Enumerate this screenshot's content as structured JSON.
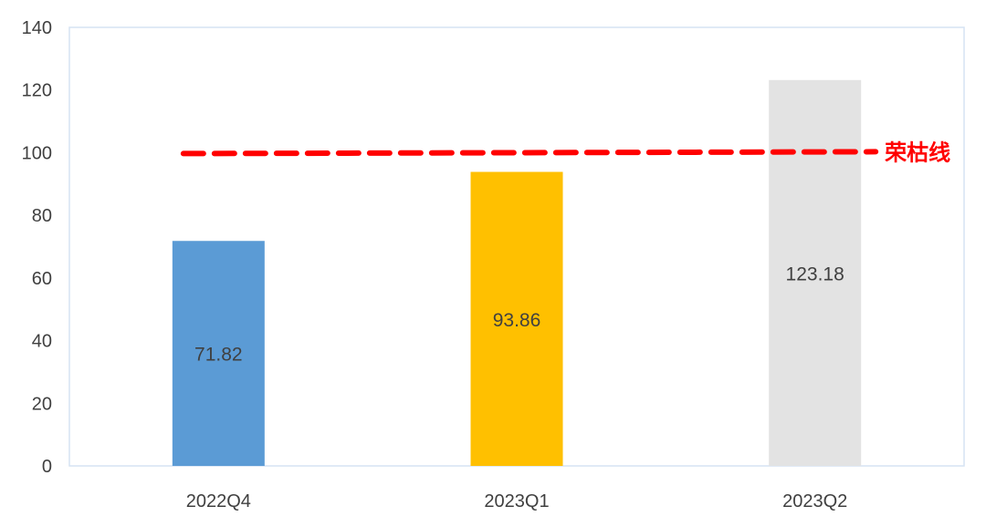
{
  "chart_data": {
    "type": "bar",
    "categories": [
      "2022Q4",
      "2023Q1",
      "2023Q2"
    ],
    "values": [
      71.82,
      93.86,
      123.18
    ],
    "value_labels": [
      "71.82",
      "93.86",
      "123.18"
    ],
    "bar_colors": [
      "#5B9BD5",
      "#FFC000",
      "#E3E3E3"
    ],
    "ylim": [
      0,
      140
    ],
    "yticks": [
      0,
      20,
      40,
      60,
      80,
      100,
      120,
      140
    ],
    "grid": false,
    "reference_line": {
      "value": 100,
      "label": "荣枯线",
      "color": "#FF0000",
      "style": "dashed"
    }
  }
}
